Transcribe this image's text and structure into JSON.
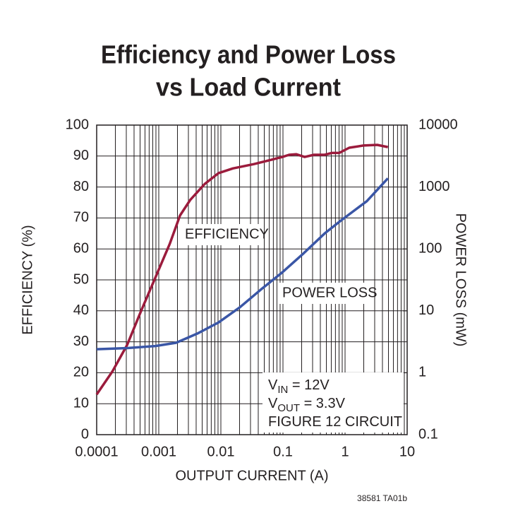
{
  "chart_data": {
    "type": "line",
    "title": [
      "Efficiency and Power Loss",
      "vs Load Current"
    ],
    "x_label": "OUTPUT CURRENT (A)",
    "y_label": "EFFICIENCY (%)",
    "y2_label": "POWER LOSS (mW)",
    "xlog": true,
    "y2log": true,
    "grid": true,
    "xminor_grid": true,
    "xlim": [
      0.0001,
      10
    ],
    "xticks": [
      0.0001,
      0.001,
      0.01,
      0.1,
      1,
      10
    ],
    "ylim": [
      0,
      100
    ],
    "yticks": [
      0,
      10,
      20,
      30,
      40,
      50,
      60,
      70,
      80,
      90,
      100
    ],
    "y2lim": [
      0.1,
      10000
    ],
    "y2ticks": [
      0.1,
      1,
      10,
      100,
      1000,
      10000
    ],
    "series": [
      {
        "name": "EFFICIENCY",
        "color": "#9b1b3c",
        "x": [
          0.0001,
          0.00018,
          0.00031,
          0.00052,
          0.00088,
          0.0015,
          0.0022,
          0.0032,
          0.0055,
          0.0092,
          0.0156,
          0.034,
          0.098,
          0.126,
          0.163,
          0.224,
          0.316,
          0.47,
          0.61,
          0.8,
          1.17,
          1.98,
          3.3,
          4.9
        ],
        "values": [
          13,
          20.5,
          29,
          40,
          50.7,
          61.6,
          70.8,
          75.8,
          81,
          84.5,
          86,
          87.4,
          89.7,
          90.4,
          90.6,
          89.7,
          90.4,
          90.4,
          91,
          91,
          92.7,
          93.4,
          93.6,
          92.9
        ]
      },
      {
        "name": "POWER LOSS",
        "color": "#3a56a6",
        "axis": "y2",
        "x": [
          0.0001,
          0.00031,
          0.00088,
          0.0019,
          0.0042,
          0.0092,
          0.0202,
          0.044,
          0.098,
          0.215,
          0.47,
          0.86,
          1.33,
          2.24,
          4.9
        ],
        "values": [
          2.4,
          2.5,
          2.7,
          3.05,
          4.3,
          6.5,
          11.4,
          22,
          42,
          85,
          178,
          288,
          400,
          590,
          1380
        ]
      }
    ],
    "conditions": [
      [
        "V",
        "IN",
        " = 12V"
      ],
      [
        "V",
        "OUT",
        " = 3.3V"
      ],
      [
        "FIGURE 12 CIRCUIT"
      ]
    ],
    "footnote": "38581 TA01b"
  }
}
